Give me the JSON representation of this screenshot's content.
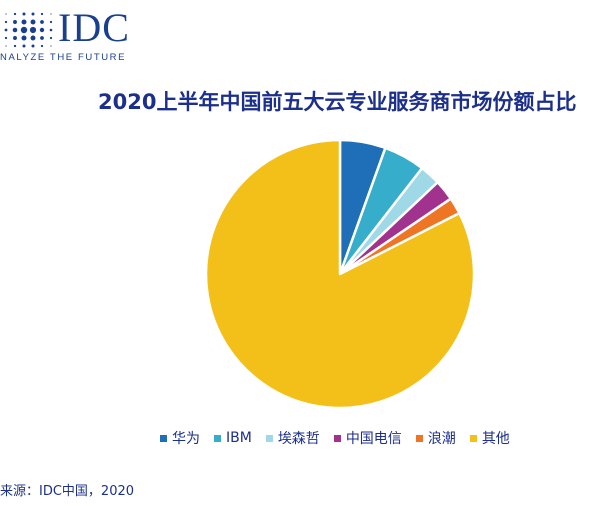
{
  "logo": {
    "name": "IDC",
    "tagline": "NALYZE THE FUTURE"
  },
  "chart_data": {
    "type": "pie",
    "title": "2020上半年中国前五大云专业服务商市场份额占比",
    "legend_position": "bottom",
    "categories": [
      "华为",
      "IBM",
      "埃森哲",
      "中国电信",
      "浪潮",
      "其他"
    ],
    "values": [
      5.5,
      5.0,
      2.5,
      2.5,
      2.0,
      82.5
    ],
    "colors": [
      "#1f6fb8",
      "#36aecb",
      "#9fd8e6",
      "#a1338f",
      "#ee7523",
      "#f3c01a"
    ]
  },
  "source": "来源：IDC中国，2020"
}
